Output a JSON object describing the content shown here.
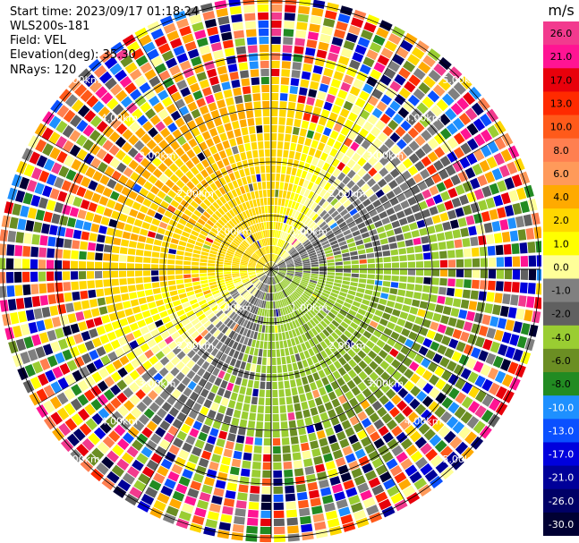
{
  "header": {
    "start_time": "Start time: 2023/09/17 01:18:24",
    "instrument": "WLS200s-181",
    "field": "Field: VEL",
    "elevation": "Elevation(deg): 35.30",
    "nrays": "NRays: 120"
  },
  "chart_data": {
    "type": "heatmap",
    "projection": "polar (PPI)",
    "title": "",
    "field": "VEL",
    "elevation_deg": 35.3,
    "n_rays": 120,
    "range_rings_km": [
      1,
      2,
      3,
      4,
      5
    ],
    "ring_label_suffix": "km",
    "colorbar": {
      "unit": "m/s",
      "ticks": [
        "26.0",
        "21.0",
        "17.0",
        "13.0",
        "10.0",
        "8.0",
        "6.0",
        "4.0",
        "2.0",
        "1.0",
        "0.0",
        "-1.0",
        "-2.0",
        "-4.0",
        "-6.0",
        "-8.0",
        "-10.0",
        "-13.0",
        "-17.0",
        "-21.0",
        "-26.0",
        "-30.0"
      ],
      "colors": [
        "#f23a8e",
        "#ff1493",
        "#e8000b",
        "#ff2a00",
        "#ff5a1a",
        "#ff7f50",
        "#ff9a5a",
        "#ffaa00",
        "#ffd700",
        "#ffff00",
        "#ffff99",
        "#808080",
        "#606060",
        "#9acd32",
        "#6b8e23",
        "#228b22",
        "#1e90ff",
        "#0a50ff",
        "#0000dd",
        "#000099",
        "#000066",
        "#000033"
      ]
    },
    "velocity_pattern": {
      "toward_sector_center_deg": 135,
      "away_sector_center_deg": 315,
      "near_range_peak_ms": 2.5,
      "noise_onset_km": 3.2
    }
  }
}
